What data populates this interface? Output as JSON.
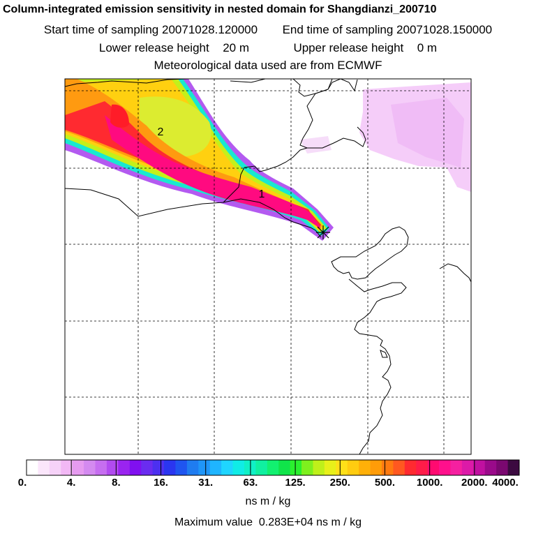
{
  "header": {
    "title": "Column-integrated emission sensitivity in nested domain for Shangdianzi_200710",
    "start_label": "Start time of sampling",
    "start_value": "20071028.120000",
    "end_label": "End time of sampling",
    "end_value": "20071028.150000",
    "lower_label": "Lower release height",
    "lower_value": "20 m",
    "upper_label": "Upper release height",
    "upper_value": "0 m",
    "met_text": "Meteorological data used are from ECMWF"
  },
  "map": {
    "trajectory_labels": [
      "1",
      "2"
    ],
    "release_marker": "release-cross"
  },
  "colorbar": {
    "ticks": [
      "0.",
      "4.",
      "8.",
      "16.",
      "31.",
      "63.",
      "125.",
      "250.",
      "500.",
      "1000.",
      "2000.",
      "4000."
    ],
    "colors": [
      "#ffffff",
      "#fbe6fb",
      "#f6d2f8",
      "#f2b8f5",
      "#e69bf0",
      "#d48af0",
      "#c66ef0",
      "#b24bf0",
      "#9a24f0",
      "#8010f0",
      "#6a2cf0",
      "#4c30f0",
      "#2a36f0",
      "#1f55f0",
      "#1f7cf0",
      "#1f95f8",
      "#1fb5ff",
      "#1fd5ff",
      "#10ece6",
      "#10f0c6",
      "#10f0a0",
      "#12f070",
      "#10e44a",
      "#2af02e",
      "#7ef01e",
      "#bff01a",
      "#e8f01a",
      "#ffe018",
      "#ffcc10",
      "#ffb008",
      "#ff9c08",
      "#ff7a10",
      "#ff5820",
      "#ff2a30",
      "#ff1c48",
      "#ff0a70",
      "#ff108c",
      "#f520a0",
      "#dc1aa8",
      "#c010a0",
      "#9a0a8a",
      "#7a0870",
      "#3c0a40"
    ],
    "units": "ns m / kg",
    "max_label": "Maximum value",
    "max_value": "0.283E+04 ns m / kg"
  }
}
